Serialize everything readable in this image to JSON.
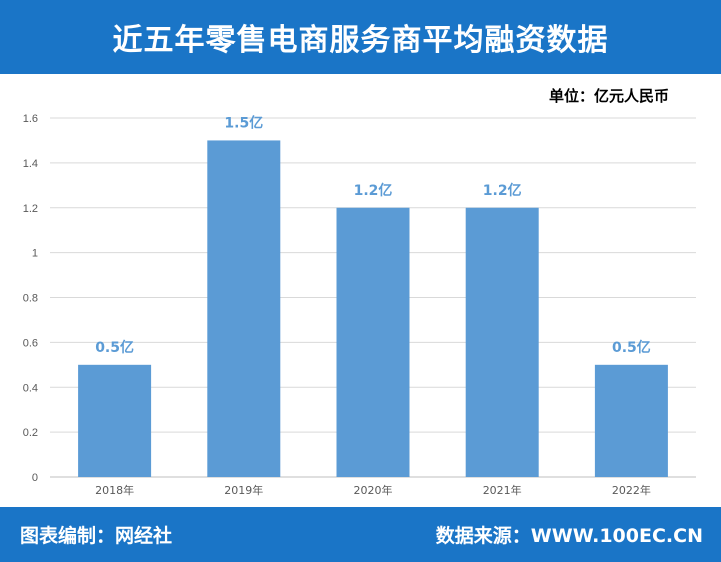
{
  "header": {
    "title": "近五年零售电商服务商平均融资数据"
  },
  "unit_label": "单位：亿元人民币",
  "footer": {
    "left": "图表编制：网经社",
    "right": "数据来源：WWW.100EC.CN"
  },
  "colors": {
    "header_bg": "#1a75c7",
    "bar": "#5b9bd5",
    "label": "#5b9bd5",
    "grid": "#d9d9d9"
  },
  "chart_data": {
    "type": "bar",
    "categories": [
      "2018年",
      "2019年",
      "2020年",
      "2021年",
      "2022年"
    ],
    "values": [
      0.5,
      1.5,
      1.2,
      1.2,
      0.5
    ],
    "data_labels": [
      "0.5亿",
      "1.5亿",
      "1.2亿",
      "1.2亿",
      "0.5亿"
    ],
    "y_ticks": [
      "0",
      "0.2",
      "0.4",
      "0.6",
      "0.8",
      "1",
      "1.2",
      "1.4",
      "1.6"
    ],
    "ylim": [
      0,
      1.6
    ],
    "grid": true,
    "legend": "none"
  }
}
